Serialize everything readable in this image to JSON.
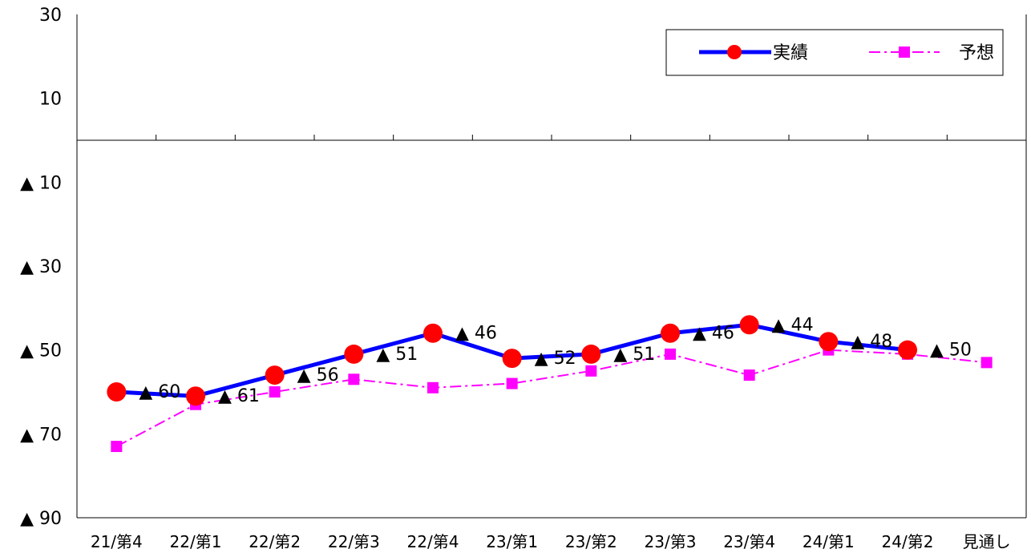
{
  "chart_data": {
    "type": "line",
    "categories": [
      "21/第4",
      "22/第1",
      "22/第2",
      "22/第3",
      "22/第4",
      "23/第1",
      "23/第2",
      "23/第3",
      "23/第4",
      "24/第1",
      "24/第2",
      "見通し"
    ],
    "yticks": [
      {
        "value": 30,
        "label": "30"
      },
      {
        "value": 10,
        "label": "10"
      },
      {
        "value": -10,
        "label": "▲ 10"
      },
      {
        "value": -30,
        "label": "▲ 30"
      },
      {
        "value": -50,
        "label": "▲ 50"
      },
      {
        "value": -70,
        "label": "▲ 70"
      },
      {
        "value": -90,
        "label": "▲ 90"
      }
    ],
    "ylim": [
      -90,
      30
    ],
    "series": [
      {
        "name": "実績",
        "values": [
          -60,
          -61,
          -56,
          -51,
          -46,
          -52,
          -51,
          -46,
          -44,
          -48,
          -50,
          null
        ],
        "color": "#0000ff",
        "marker": "circle",
        "marker_color": "#ff0000"
      },
      {
        "name": "予想",
        "values": [
          -73,
          -63,
          -60,
          -57,
          -59,
          -58,
          -55,
          -51,
          -56,
          -50,
          -51,
          -53
        ],
        "color": "#ff00ff",
        "marker": "square",
        "marker_color": "#ff00ff"
      }
    ],
    "data_labels": [
      {
        "index": 0,
        "text": "▲ 60"
      },
      {
        "index": 1,
        "text": "▲ 61"
      },
      {
        "index": 2,
        "text": "▲ 56"
      },
      {
        "index": 3,
        "text": "▲ 51"
      },
      {
        "index": 4,
        "text": "▲ 46"
      },
      {
        "index": 5,
        "text": "▲ 52"
      },
      {
        "index": 6,
        "text": "▲ 51"
      },
      {
        "index": 7,
        "text": "▲ 46"
      },
      {
        "index": 8,
        "text": "▲ 44"
      },
      {
        "index": 9,
        "text": "▲ 48"
      },
      {
        "index": 10,
        "text": "▲ 50"
      }
    ],
    "legend_position": "top-right",
    "grid": false
  }
}
